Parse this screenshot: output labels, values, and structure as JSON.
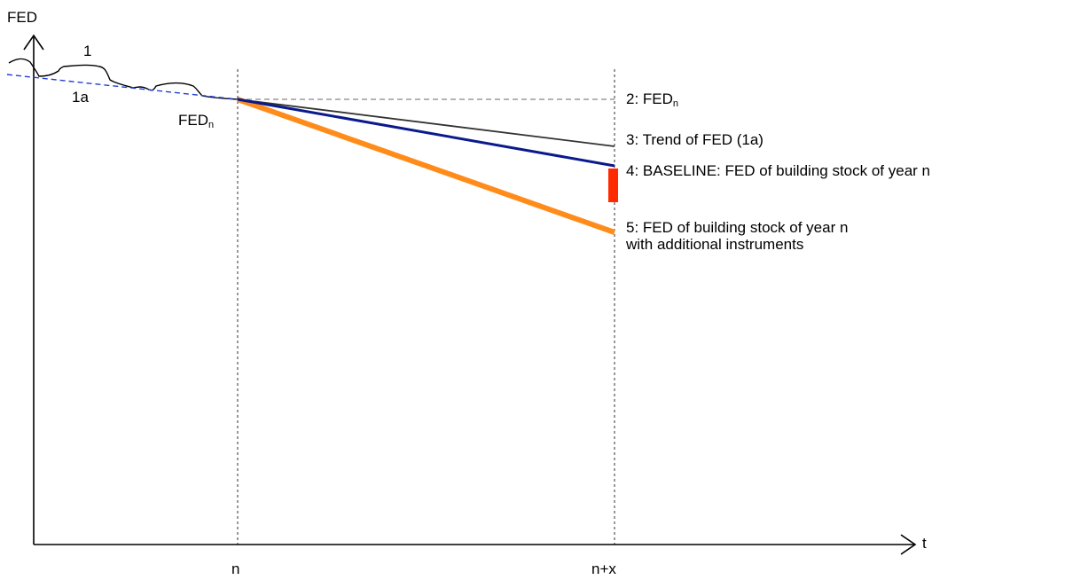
{
  "axes": {
    "y_label": "FED",
    "x_label": "t",
    "x_ticks": [
      "n",
      "n+x"
    ]
  },
  "curve_labels": {
    "actual": "1",
    "trend": "1a",
    "fed_n_base": "FED",
    "fed_n_sub": "n"
  },
  "legend": {
    "item2_prefix": "2: FED",
    "item2_sub": "n",
    "item3": "3: Trend of FED (1a)",
    "item4": "4: BASELINE: FED of building stock of year n",
    "item5_line1": "5: FED of building stock of year n",
    "item5_line2": "with additional instruments"
  },
  "colors": {
    "axis": "#000000",
    "trend_dashed": "#1f3fd6",
    "fed_n_dashed": "#9a9a9a",
    "trend_line": "#333333",
    "baseline": "#0a1a8c",
    "additional": "#ff8c1a",
    "savings_bar": "#ff2a00"
  }
}
